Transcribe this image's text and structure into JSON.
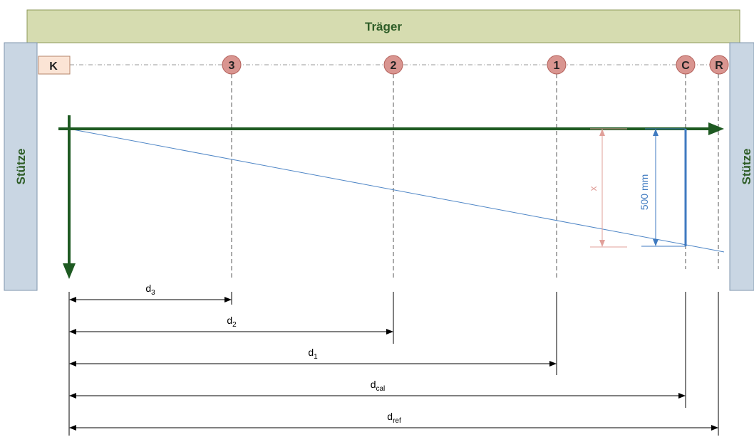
{
  "beam": {
    "label": "Träger",
    "fill": "#d6dcb0",
    "stroke": "#8e9a5a",
    "text_color": "#2e5d27"
  },
  "supports": {
    "left_label": "Stütze",
    "right_label": "Stütze",
    "fill": "#c9d6e3",
    "stroke": "#7f95ac",
    "text_color": "#2e5d27"
  },
  "reference": {
    "label": "K",
    "fill": "#fbe4d5",
    "stroke": "#b6856a"
  },
  "points": {
    "p3": "3",
    "p2": "2",
    "p1": "1",
    "pc": "C",
    "pr": "R",
    "fill": "#d99590",
    "stroke": "#b25e58"
  },
  "axis_color": "#1e5a22",
  "slope_line_color": "#4f86c6",
  "annotations": {
    "x_label": "x",
    "x_color": "#e1a09a",
    "height_label": "500 mm",
    "height_color": "#3f7ac0"
  },
  "dimensions": {
    "d3": {
      "base": "d",
      "sub": "3"
    },
    "d2": {
      "base": "d",
      "sub": "2"
    },
    "d1": {
      "base": "d",
      "sub": "1"
    },
    "dcal": {
      "base": "d",
      "sub": "cal"
    },
    "dref": {
      "base": "d",
      "sub": "ref"
    }
  }
}
